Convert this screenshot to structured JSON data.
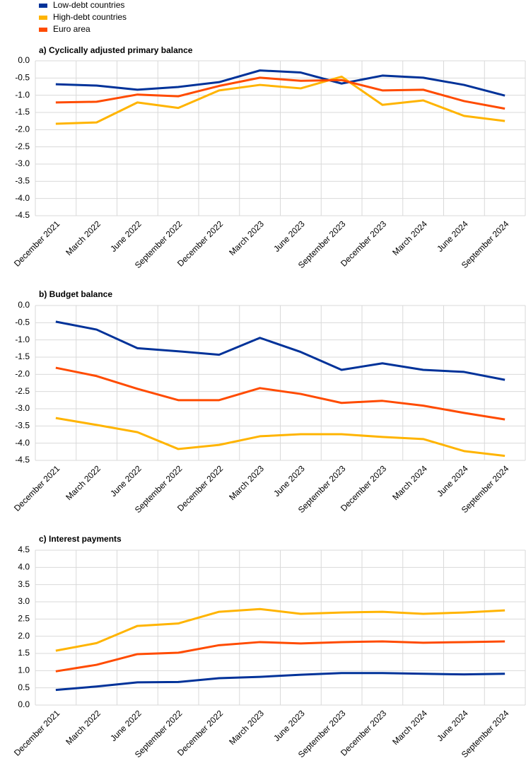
{
  "chart_data": [
    {
      "type": "line",
      "title": "a) Cyclically adjusted primary balance",
      "categories": [
        "December 2021",
        "March 2022",
        "June 2022",
        "September 2022",
        "December 2022",
        "March 2023",
        "June 2023",
        "September 2023",
        "December 2023",
        "March 2024",
        "June 2024",
        "September 2024"
      ],
      "series": [
        {
          "name": "Low-debt countries",
          "color": "#003299",
          "values": [
            -0.68,
            -0.72,
            -0.84,
            -0.76,
            -0.62,
            -0.28,
            -0.34,
            -0.66,
            -0.43,
            -0.49,
            -0.7,
            -1.01
          ]
        },
        {
          "name": "High-debt countries",
          "color": "#ffb400",
          "values": [
            -1.83,
            -1.79,
            -1.21,
            -1.37,
            -0.86,
            -0.7,
            -0.8,
            -0.46,
            -1.28,
            -1.15,
            -1.6,
            -1.75
          ]
        },
        {
          "name": "Euro area",
          "color": "#ff4b00",
          "values": [
            -1.21,
            -1.19,
            -0.98,
            -1.03,
            -0.73,
            -0.49,
            -0.58,
            -0.56,
            -0.86,
            -0.84,
            -1.17,
            -1.39
          ]
        }
      ],
      "ylim": [
        -4.5,
        0
      ],
      "yticks": [
        {
          "value": 0,
          "label": "0.0"
        },
        -0.5,
        {
          "value": -1,
          "label": "-1.0"
        },
        -1.5,
        {
          "value": -2,
          "label": "-2.0"
        },
        -2.5,
        {
          "value": -3,
          "label": "-3.0"
        },
        -3.5,
        {
          "value": -4,
          "label": "-4.0"
        },
        -4.5
      ],
      "grid": true
    },
    {
      "type": "line",
      "title": "b) Budget balance",
      "categories": [
        "December 2021",
        "March 2022",
        "June 2022",
        "September 2022",
        "December 2022",
        "March 2023",
        "June 2023",
        "September 2023",
        "December 2023",
        "March 2024",
        "June 2024",
        "September 2024"
      ],
      "series": [
        {
          "name": "Low-debt countries",
          "color": "#003299",
          "values": [
            -0.47,
            -0.7,
            -1.24,
            -1.33,
            -1.43,
            -0.94,
            -1.35,
            -1.87,
            -1.68,
            -1.87,
            -1.93,
            -2.16
          ]
        },
        {
          "name": "High-debt countries",
          "color": "#ffb400",
          "values": [
            -3.27,
            -3.47,
            -3.68,
            -4.17,
            -4.05,
            -3.8,
            -3.74,
            -3.74,
            -3.82,
            -3.88,
            -4.23,
            -4.37
          ]
        },
        {
          "name": "Euro area",
          "color": "#ff4b00",
          "values": [
            -1.81,
            -2.05,
            -2.42,
            -2.75,
            -2.75,
            -2.4,
            -2.57,
            -2.83,
            -2.77,
            -2.91,
            -3.12,
            -3.31
          ]
        }
      ],
      "ylim": [
        -4.5,
        0
      ],
      "yticks": [
        {
          "value": 0,
          "label": "0.0"
        },
        -0.5,
        {
          "value": -1,
          "label": "-1.0"
        },
        -1.5,
        {
          "value": -2,
          "label": "-2.0"
        },
        -2.5,
        {
          "value": -3,
          "label": "-3.0"
        },
        -3.5,
        {
          "value": -4,
          "label": "-4.0"
        },
        -4.5
      ],
      "grid": true
    },
    {
      "type": "line",
      "title": "c) Interest payments",
      "categories": [
        "December 2021",
        "March 2022",
        "June 2022",
        "September 2022",
        "December 2022",
        "March 2023",
        "June 2023",
        "September 2023",
        "December 2023",
        "March 2024",
        "June 2024",
        "September 2024"
      ],
      "series": [
        {
          "name": "Low-debt countries",
          "color": "#003299",
          "values": [
            0.44,
            0.54,
            0.66,
            0.67,
            0.78,
            0.82,
            0.88,
            0.93,
            0.93,
            0.91,
            0.89,
            0.91
          ]
        },
        {
          "name": "High-debt countries",
          "color": "#ffb400",
          "values": [
            1.58,
            1.8,
            2.3,
            2.37,
            2.71,
            2.79,
            2.65,
            2.69,
            2.71,
            2.65,
            2.69,
            2.75
          ]
        },
        {
          "name": "Euro area",
          "color": "#ff4b00",
          "values": [
            0.98,
            1.17,
            1.48,
            1.52,
            1.74,
            1.83,
            1.79,
            1.83,
            1.85,
            1.81,
            1.83,
            1.85
          ]
        }
      ],
      "ylim": [
        0,
        4.5
      ],
      "yticks": [
        {
          "value": 0,
          "label": "0.0"
        },
        0.5,
        {
          "value": 1,
          "label": "1.0"
        },
        1.5,
        {
          "value": 2,
          "label": "2.0"
        },
        2.5,
        {
          "value": 3,
          "label": "3.0"
        },
        3.5,
        {
          "value": 4,
          "label": "4.0"
        },
        4.5
      ],
      "grid": true
    }
  ]
}
